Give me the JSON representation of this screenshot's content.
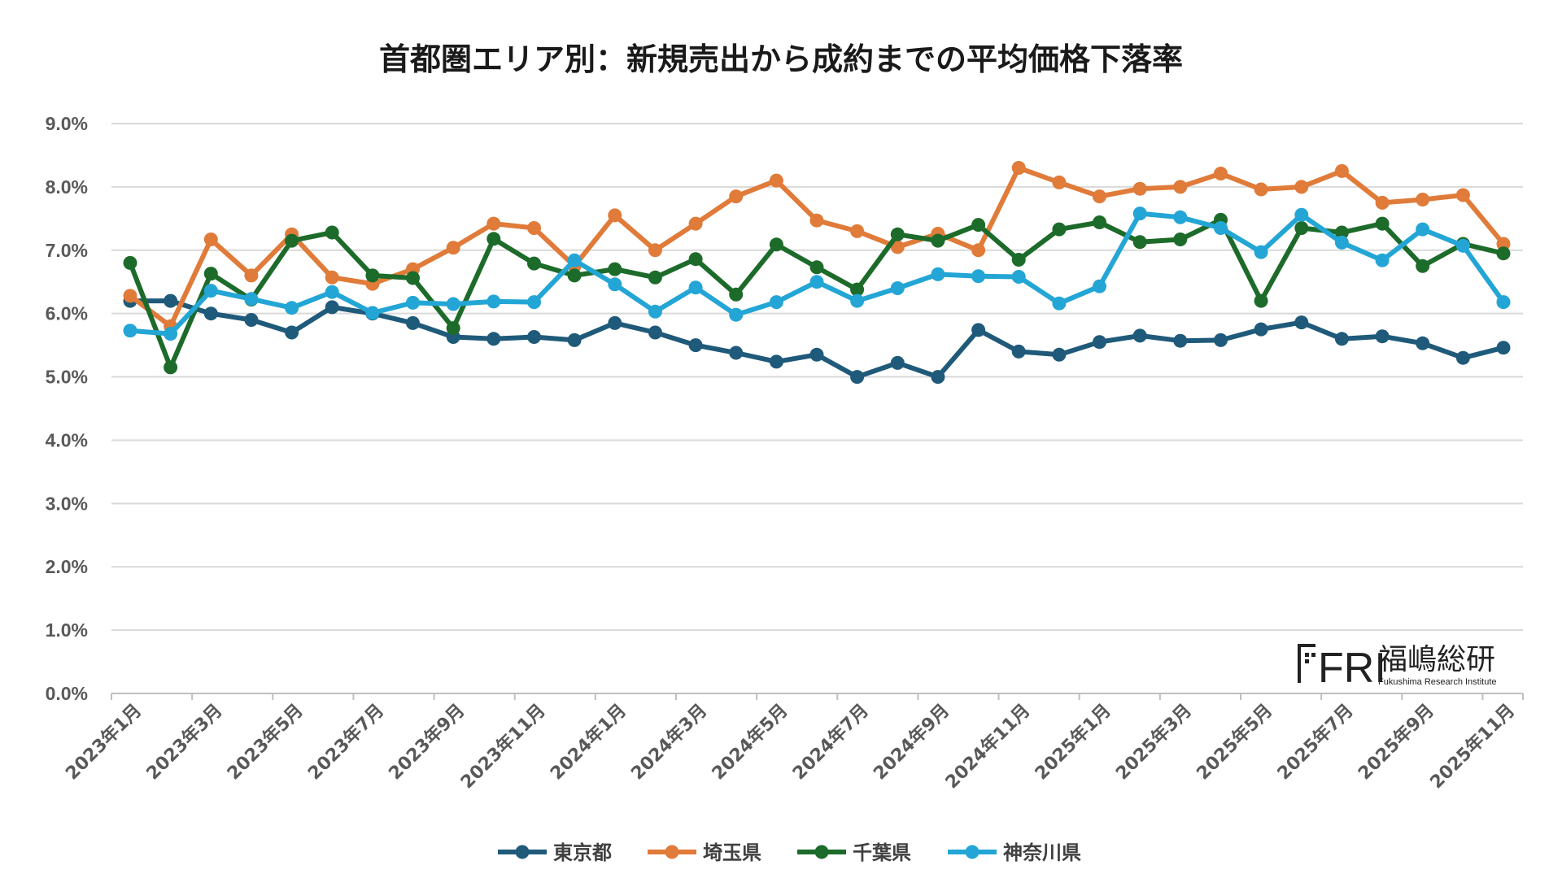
{
  "chart_data": {
    "type": "line",
    "title": "首都圏エリア別：新規売出から成約までの平均価格下落率",
    "xlabel": "",
    "ylabel": "",
    "ylim": [
      0,
      9
    ],
    "yticks": [
      "0.0%",
      "1.0%",
      "2.0%",
      "3.0%",
      "4.0%",
      "5.0%",
      "6.0%",
      "7.0%",
      "8.0%",
      "9.0%"
    ],
    "xtick_labels": [
      "2023年1月",
      "2023年3月",
      "2023年5月",
      "2023年7月",
      "2023年9月",
      "2023年11月",
      "2024年1月",
      "2024年3月",
      "2024年5月",
      "2024年7月",
      "2024年9月",
      "2024年11月",
      "2025年1月",
      "2025年3月",
      "2025年5月",
      "2025年7月",
      "2025年9月",
      "2025年11月"
    ],
    "categories": [
      "2023年1月",
      "2023年2月",
      "2023年3月",
      "2023年4月",
      "2023年5月",
      "2023年6月",
      "2023年7月",
      "2023年8月",
      "2023年9月",
      "2023年10月",
      "2023年11月",
      "2023年12月",
      "2024年1月",
      "2024年2月",
      "2024年3月",
      "2024年4月",
      "2024年5月",
      "2024年6月",
      "2024年7月",
      "2024年8月",
      "2024年9月",
      "2024年10月",
      "2024年11月",
      "2024年12月",
      "2025年1月",
      "2025年2月",
      "2025年3月",
      "2025年4月",
      "2025年5月",
      "2025年6月",
      "2025年7月",
      "2025年8月",
      "2025年9月",
      "2025年10月",
      "2025年11月"
    ],
    "legend_position": "bottom",
    "grid": true,
    "series": [
      {
        "name": "東京都",
        "color": "#1f5a7a",
        "values": [
          6.2,
          6.2,
          6.0,
          5.9,
          5.7,
          6.1,
          6.0,
          5.85,
          5.63,
          5.6,
          5.63,
          5.58,
          5.85,
          5.7,
          5.5,
          5.38,
          5.24,
          5.35,
          5.0,
          5.22,
          5.0,
          5.74,
          5.4,
          5.35,
          5.55,
          5.65,
          5.57,
          5.58,
          5.75,
          5.86,
          5.6,
          5.64,
          5.53,
          5.3,
          5.46
        ]
      },
      {
        "name": "埼玉県",
        "color": "#e07b39",
        "values": [
          6.28,
          5.8,
          7.17,
          6.6,
          7.25,
          6.57,
          6.47,
          6.7,
          7.04,
          7.42,
          7.35,
          6.75,
          7.55,
          7.0,
          7.42,
          7.85,
          8.1,
          7.47,
          7.3,
          7.05,
          7.26,
          7.0,
          8.3,
          8.07,
          7.85,
          7.97,
          8.0,
          8.21,
          7.96,
          8.0,
          8.25,
          7.75,
          7.8,
          7.87,
          7.1
        ]
      },
      {
        "name": "千葉県",
        "color": "#1d6b2a",
        "values": [
          6.8,
          5.15,
          6.63,
          6.22,
          7.15,
          7.28,
          6.6,
          6.56,
          5.77,
          7.18,
          6.79,
          6.6,
          6.7,
          6.57,
          6.86,
          6.3,
          7.09,
          6.73,
          6.38,
          7.25,
          7.15,
          7.4,
          6.85,
          7.33,
          7.44,
          7.13,
          7.17,
          7.48,
          6.2,
          7.35,
          7.28,
          7.42,
          6.75,
          7.1,
          6.95
        ]
      },
      {
        "name": "神奈川県",
        "color": "#23a6d5",
        "values": [
          5.73,
          5.68,
          6.36,
          6.23,
          6.09,
          6.34,
          6.01,
          6.17,
          6.15,
          6.19,
          6.18,
          6.84,
          6.46,
          6.03,
          6.41,
          5.98,
          6.18,
          6.5,
          6.2,
          6.4,
          6.62,
          6.59,
          6.58,
          6.16,
          6.43,
          7.58,
          7.52,
          7.35,
          6.97,
          7.56,
          7.12,
          6.84,
          7.33,
          7.07,
          6.18
        ]
      }
    ]
  },
  "logo": {
    "mark": "FRI",
    "name_jp": "福嶋総研",
    "name_en": "Fukushima Research Institute"
  }
}
